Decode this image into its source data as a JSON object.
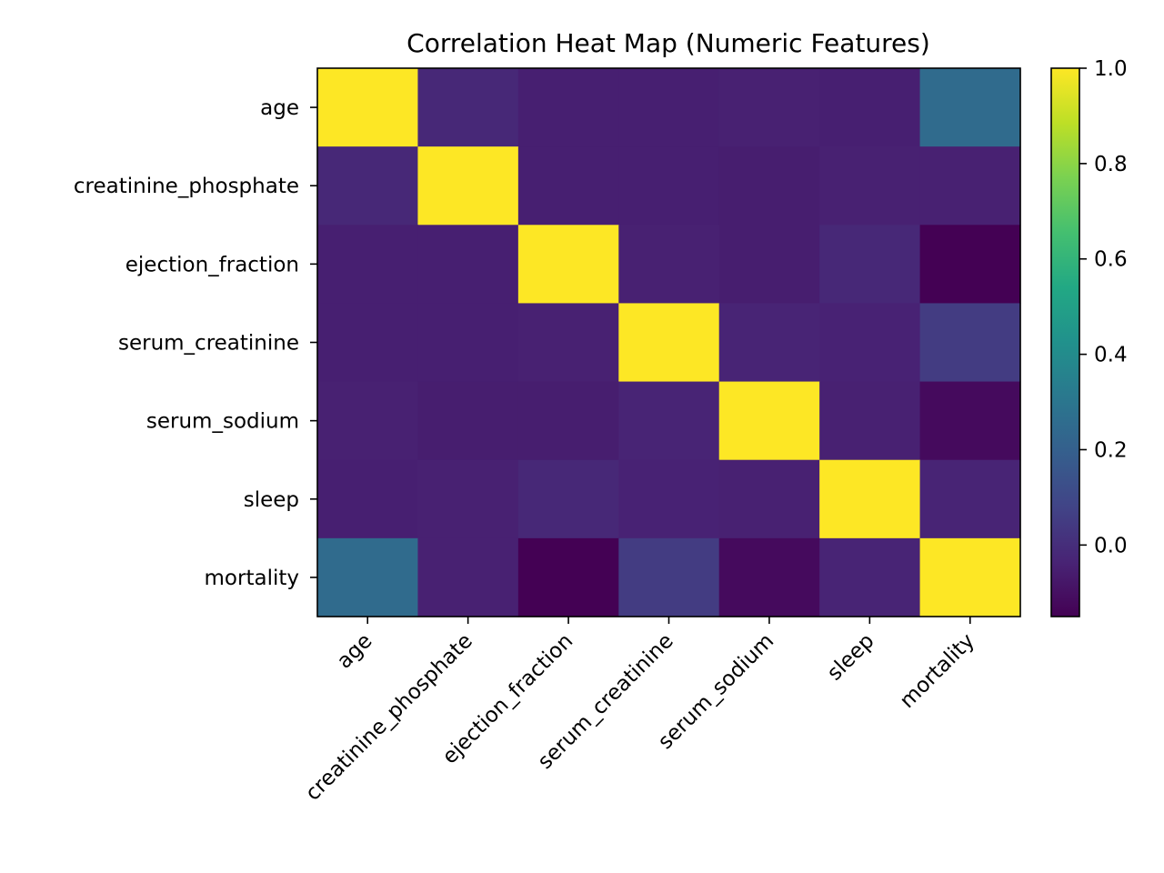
{
  "chart_data": {
    "type": "heatmap",
    "title": "Correlation Heat Map (Numeric Features)",
    "xlabel": "",
    "ylabel": "",
    "row_labels": [
      "age",
      "creatinine_phosphate",
      "ejection_fraction",
      "serum_creatinine",
      "serum_sodium",
      "sleep",
      "mortality"
    ],
    "col_labels": [
      "age",
      "creatinine_phosphate",
      "ejection_fraction",
      "serum_creatinine",
      "serum_sodium",
      "sleep",
      "mortality"
    ],
    "values": [
      [
        1.0,
        -0.02,
        -0.05,
        -0.05,
        -0.045,
        -0.05,
        0.25
      ],
      [
        -0.02,
        1.0,
        -0.05,
        -0.05,
        -0.055,
        -0.045,
        -0.045
      ],
      [
        -0.05,
        -0.05,
        1.0,
        -0.045,
        -0.055,
        -0.02,
        -0.15
      ],
      [
        -0.05,
        -0.05,
        -0.045,
        1.0,
        -0.035,
        -0.04,
        0.05
      ],
      [
        -0.045,
        -0.055,
        -0.055,
        -0.035,
        1.0,
        -0.045,
        -0.12
      ],
      [
        -0.05,
        -0.045,
        -0.02,
        -0.04,
        -0.045,
        1.0,
        -0.035
      ],
      [
        0.25,
        -0.045,
        -0.15,
        0.05,
        -0.12,
        -0.035,
        1.0
      ]
    ],
    "colorbar": {
      "min": -0.15,
      "max": 1.0,
      "ticks": [
        0.0,
        0.2,
        0.4,
        0.6,
        0.8,
        1.0
      ],
      "tick_labels": [
        "0.0",
        "0.2",
        "0.4",
        "0.6",
        "0.8",
        "1.0"
      ]
    },
    "colormap": "viridis"
  }
}
